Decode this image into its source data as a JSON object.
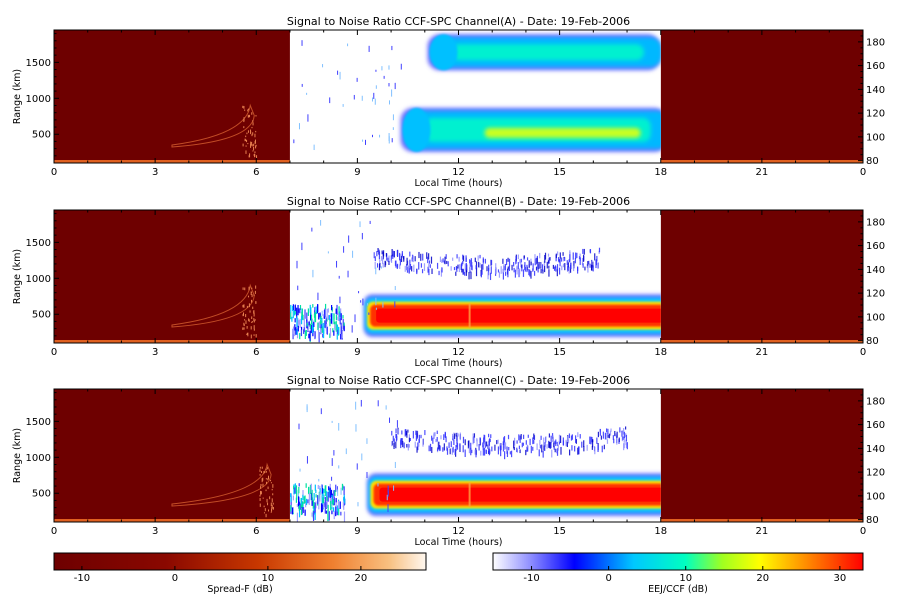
{
  "chart_data": [
    {
      "type": "heatmap",
      "title": "Signal to Noise Ratio CCF-SPC Channel(A) - Date: 19-Feb-2006",
      "xlabel": "Local Time (hours)",
      "ylabel": "Range (km)",
      "xlim": [
        0,
        24
      ],
      "ylim_left": [
        100,
        1950
      ],
      "ylim_right": [
        78,
        190
      ],
      "x_ticks": [
        "0",
        "3",
        "6",
        "9",
        "12",
        "15",
        "18",
        "21",
        "0"
      ],
      "y_ticks_left": [
        "500",
        "1000",
        "1500"
      ],
      "y_ticks_right": [
        "80",
        "100",
        "120",
        "140",
        "160",
        "180"
      ],
      "spread_f_windows": [
        [
          0,
          7
        ],
        [
          18,
          24
        ]
      ],
      "eej_ccf_window": [
        7,
        18
      ],
      "echo_regions": [
        {
          "label": "upper",
          "t_start": 11.2,
          "t_end": 17.8,
          "range_center_km": 1640,
          "snr_db": 12
        },
        {
          "label": "lower",
          "t_start": 10.4,
          "t_end": 18.0,
          "range_center_km": 560,
          "snr_db": 14
        }
      ],
      "spread_f_echo": {
        "t_start": 3.5,
        "t_end": 6.0,
        "range_top_km": 900
      }
    },
    {
      "type": "heatmap",
      "title": "Signal to Noise Ratio CCF-SPC Channel(B) - Date: 19-Feb-2006",
      "xlabel": "Local Time (hours)",
      "ylabel": "Range (km)",
      "xlim": [
        0,
        24
      ],
      "ylim_left": [
        100,
        1950
      ],
      "ylim_right": [
        78,
        190
      ],
      "x_ticks": [
        "0",
        "3",
        "6",
        "9",
        "12",
        "15",
        "18",
        "21",
        "0"
      ],
      "y_ticks_left": [
        "500",
        "1000",
        "1500"
      ],
      "y_ticks_right": [
        "80",
        "100",
        "120",
        "140",
        "160",
        "180"
      ],
      "spread_f_windows": [
        [
          0,
          7
        ],
        [
          18,
          24
        ]
      ],
      "eej_ccf_window": [
        7,
        18
      ],
      "echo_regions": [
        {
          "label": "upper",
          "t_start": 9.5,
          "t_end": 16.2,
          "range_center_km": 1200,
          "snr_db": -5
        },
        {
          "label": "lower",
          "t_start": 9.2,
          "t_end": 18.0,
          "range_center_km": 480,
          "snr_db": 30
        }
      ],
      "spread_f_echo": {
        "t_start": 3.5,
        "t_end": 6.0,
        "range_top_km": 900
      }
    },
    {
      "type": "heatmap",
      "title": "Signal to Noise Ratio CCF-SPC Channel(C) - Date: 19-Feb-2006",
      "xlabel": "Local Time (hours)",
      "ylabel": "Range (km)",
      "xlim": [
        0,
        24
      ],
      "ylim_left": [
        100,
        1950
      ],
      "ylim_right": [
        78,
        190
      ],
      "x_ticks": [
        "0",
        "3",
        "6",
        "9",
        "12",
        "15",
        "18",
        "21",
        "0"
      ],
      "y_ticks_left": [
        "500",
        "1000",
        "1500"
      ],
      "y_ticks_right": [
        "80",
        "100",
        "120",
        "140",
        "160",
        "180"
      ],
      "spread_f_windows": [
        [
          0,
          7
        ],
        [
          18,
          24
        ]
      ],
      "eej_ccf_window": [
        7,
        18
      ],
      "echo_regions": [
        {
          "label": "upper",
          "t_start": 10.0,
          "t_end": 17.0,
          "range_center_km": 1200,
          "snr_db": -5
        },
        {
          "label": "lower",
          "t_start": 9.3,
          "t_end": 18.0,
          "range_center_km": 480,
          "snr_db": 30
        }
      ],
      "spread_f_echo": {
        "t_start": 3.5,
        "t_end": 6.5,
        "range_top_km": 900
      }
    }
  ],
  "colorbars": [
    {
      "label": "Spread-F (dB)",
      "range": [
        -13,
        27
      ],
      "ticks": [
        "-10",
        "0",
        "10",
        "20"
      ]
    },
    {
      "label": "EEJ/CCF (dB)",
      "range": [
        -15,
        33
      ],
      "ticks": [
        "-10",
        "0",
        "10",
        "20",
        "30"
      ]
    }
  ],
  "colors": {
    "spread_f_background": "#6e0000",
    "eej_background": "#ffffff",
    "spread_f_scale": [
      "#6e0000",
      "#a01000",
      "#d04000",
      "#f08030",
      "#f8c080",
      "#fff8f0"
    ],
    "eej_scale": [
      "#ffffff",
      "#8080ff",
      "#0000ff",
      "#00c0ff",
      "#00ffc0",
      "#c0ff00",
      "#ffff00",
      "#ff8000",
      "#ff0000"
    ]
  }
}
